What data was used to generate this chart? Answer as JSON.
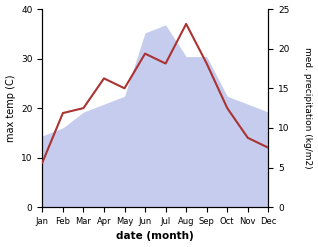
{
  "months": [
    "Jan",
    "Feb",
    "Mar",
    "Apr",
    "May",
    "Jun",
    "Jul",
    "Aug",
    "Sep",
    "Oct",
    "Nov",
    "Dec"
  ],
  "temperature": [
    9,
    19,
    20,
    26,
    24,
    31,
    29,
    37,
    29,
    20,
    14,
    12
  ],
  "precipitation_kg": [
    9,
    10,
    12,
    13,
    14,
    22,
    23,
    19,
    19,
    14,
    13,
    12
  ],
  "temp_color": "#aa3333",
  "precip_color_fill": "#c5ccee",
  "ylabel_left": "max temp (C)",
  "ylabel_right": "med. precipitation (kg/m2)",
  "xlabel": "date (month)",
  "ylim_left": [
    0,
    40
  ],
  "ylim_right": [
    0,
    25
  ],
  "yticks_left": [
    0,
    10,
    20,
    30,
    40
  ],
  "yticks_right": [
    0,
    5,
    10,
    15,
    20,
    25
  ],
  "bg_color": "#ffffff"
}
